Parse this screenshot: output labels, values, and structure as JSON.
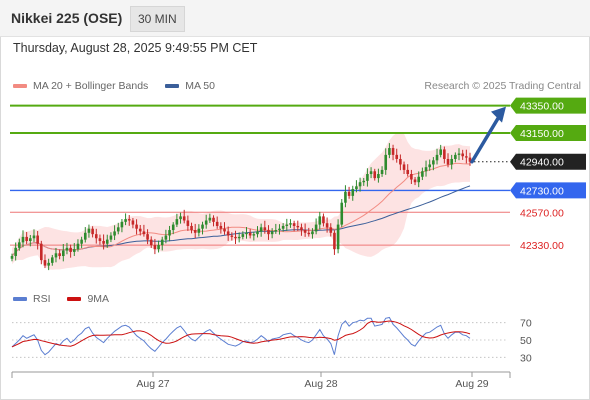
{
  "header": {
    "title": "Nikkei 225 (OSE)",
    "timeframe": "30 MIN"
  },
  "datetime": "Thursday, August 28, 2025 9:49:55 PM CET",
  "legend": {
    "bollinger": "MA 20 + Bollinger Bands",
    "ma50": "MA 50"
  },
  "credit": "Research © 2025 Trading Central",
  "rsi_legend": {
    "rsi": "RSI",
    "ma9": "9MA"
  },
  "colors": {
    "bull": "#2e8b2e",
    "bear": "#c62828",
    "ma20": "#f28b82",
    "ma50": "#3b5f9a",
    "band_fill": "#fde0e0",
    "resistance": "#55aa11",
    "support_blue": "#3366ee",
    "support_red": "#ee7777",
    "last_price": "#222222",
    "rsi": "#5b7ed1",
    "rsi_ma": "#cc1111",
    "arrow": "#2c5aa0"
  },
  "chart_data": {
    "type": "candlestick",
    "interval": "30 MIN",
    "ylim": [
      42060,
      43450
    ],
    "x_ticks": [
      "Aug 27",
      "Aug 28",
      "Aug 29"
    ],
    "levels": [
      {
        "value": 43350.0,
        "label": "43350.00",
        "kind": "resistance"
      },
      {
        "value": 43150.0,
        "label": "43150.00",
        "kind": "resistance"
      },
      {
        "value": 42940.0,
        "label": "42940.00",
        "kind": "last"
      },
      {
        "value": 42730.0,
        "label": "42730.00",
        "kind": "support-pivot"
      },
      {
        "value": 42570.0,
        "label": "42570.00",
        "kind": "support"
      },
      {
        "value": 42330.0,
        "label": "42330.00",
        "kind": "support"
      }
    ],
    "projection": {
      "from": 42940,
      "to": 43350,
      "direction": "up"
    },
    "closes": [
      42250,
      42310,
      42350,
      42390,
      42360,
      42380,
      42400,
      42340,
      42220,
      42180,
      42200,
      42240,
      42270,
      42250,
      42290,
      42310,
      42280,
      42300,
      42340,
      42370,
      42420,
      42450,
      42410,
      42380,
      42360,
      42340,
      42370,
      42400,
      42430,
      42460,
      42500,
      42520,
      42510,
      42480,
      42450,
      42430,
      42410,
      42370,
      42330,
      42300,
      42330,
      42370,
      42400,
      42440,
      42480,
      42520,
      42540,
      42510,
      42470,
      42440,
      42420,
      42450,
      42480,
      42510,
      42530,
      42500,
      42470,
      42450,
      42430,
      42400,
      42390,
      42380,
      42390,
      42410,
      42420,
      42400,
      42410,
      42430,
      42460,
      42440,
      42410,
      42430,
      42440,
      42450,
      42470,
      42480,
      42490,
      42470,
      42460,
      42440,
      42420,
      42410,
      42430,
      42480,
      42540,
      42490,
      42460,
      42420,
      42300,
      42480,
      42640,
      42720,
      42690,
      42740,
      42760,
      42790,
      42800,
      42850,
      42870,
      42820,
      42850,
      42880,
      42990,
      43040,
      42990,
      42960,
      42920,
      42880,
      42850,
      42810,
      42790,
      42830,
      42870,
      42900,
      42920,
      42950,
      42990,
      43030,
      42960,
      42920,
      42960,
      42990,
      43000,
      42980,
      42970,
      42940
    ],
    "bollinger": {
      "note": "MA 20 with upper/lower bands drawn as shaded envelope"
    },
    "ma50": {
      "note": "50-period moving average line"
    },
    "rsi": {
      "ylim": [
        20,
        80
      ],
      "ticks": [
        70,
        50,
        30
      ],
      "values": [
        42,
        46,
        50,
        55,
        52,
        54,
        56,
        50,
        38,
        33,
        36,
        41,
        46,
        44,
        49,
        52,
        47,
        50,
        55,
        58,
        63,
        65,
        58,
        53,
        50,
        47,
        52,
        56,
        60,
        63,
        66,
        67,
        65,
        60,
        55,
        52,
        49,
        44,
        40,
        37,
        42,
        47,
        51,
        56,
        60,
        64,
        66,
        61,
        55,
        51,
        49,
        53,
        57,
        60,
        62,
        58,
        54,
        51,
        48,
        45,
        44,
        43,
        45,
        48,
        49,
        47,
        48,
        51,
        55,
        52,
        48,
        51,
        52,
        53,
        56,
        57,
        58,
        55,
        53,
        50,
        48,
        47,
        50,
        56,
        62,
        55,
        51,
        46,
        33,
        55,
        68,
        72,
        66,
        70,
        71,
        73,
        72,
        75,
        75,
        66,
        67,
        68,
        75,
        76,
        68,
        64,
        59,
        54,
        50,
        45,
        43,
        49,
        54,
        58,
        59,
        62,
        65,
        67,
        57,
        52,
        56,
        59,
        59,
        56,
        55,
        52
      ]
    }
  }
}
